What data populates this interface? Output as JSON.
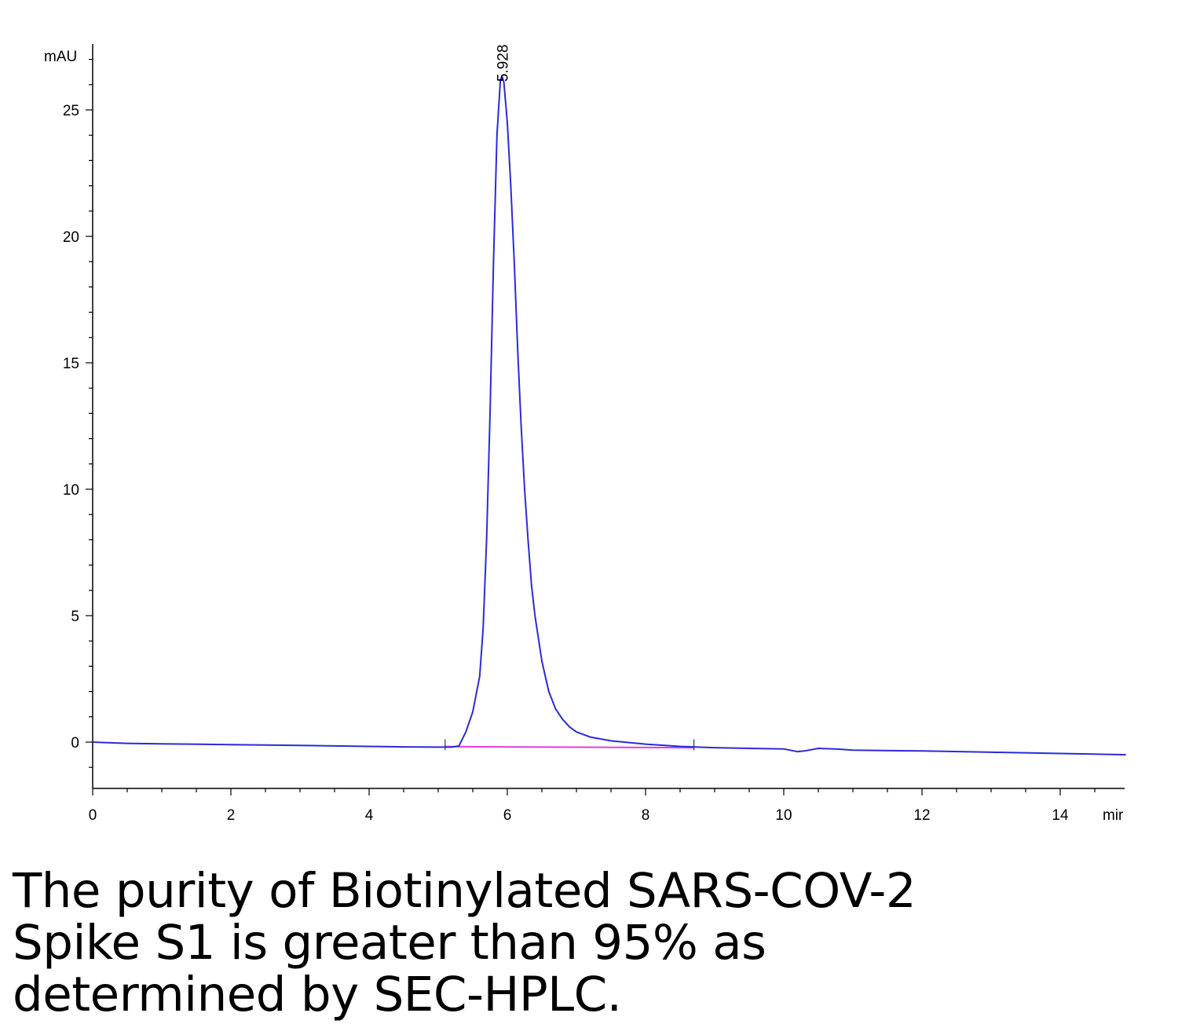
{
  "chart_data": {
    "type": "line",
    "title": "",
    "ylabel": "mAU",
    "xlabel": "mir",
    "xlim": [
      0,
      14.95
    ],
    "ylim": [
      -1.8,
      27.5
    ],
    "x_ticks": [
      0,
      2,
      4,
      6,
      8,
      10,
      12,
      14
    ],
    "y_ticks": [
      0,
      5,
      10,
      15,
      20,
      25
    ],
    "grid": false,
    "colors": {
      "signal": "#2b2bd8",
      "baseline": "#e23ce0",
      "axis": "#000000"
    },
    "peak_annotation": {
      "label": "5.928",
      "x": 5.928,
      "y": 26.3
    },
    "series": [
      {
        "x": [
          0,
          0.5,
          1,
          2,
          3,
          4,
          4.5,
          5.0,
          5.1,
          5.2,
          5.3,
          5.4,
          5.5,
          5.6,
          5.65,
          5.7,
          5.75,
          5.8,
          5.85,
          5.9,
          5.928,
          5.95,
          6.0,
          6.05,
          6.1,
          6.15,
          6.2,
          6.25,
          6.3,
          6.35,
          6.4,
          6.5,
          6.6,
          6.7,
          6.8,
          6.9,
          7.0,
          7.2,
          7.5,
          8,
          8.5,
          9,
          9.5,
          10,
          10.2,
          10.3,
          10.5,
          10.8,
          11,
          12,
          13,
          14,
          14.95
        ],
        "y": [
          0.0,
          -0.05,
          -0.07,
          -0.1,
          -0.13,
          -0.17,
          -0.19,
          -0.2,
          -0.2,
          -0.2,
          -0.15,
          0.4,
          1.2,
          2.6,
          4.5,
          8,
          13,
          19,
          24,
          26.2,
          26.3,
          26.1,
          24.5,
          22,
          19,
          15.5,
          12.5,
          10,
          8,
          6.2,
          5,
          3.2,
          2.0,
          1.3,
          0.9,
          0.6,
          0.4,
          0.2,
          0.05,
          -0.08,
          -0.17,
          -0.22,
          -0.25,
          -0.27,
          -0.38,
          -0.35,
          -0.25,
          -0.28,
          -0.32,
          -0.35,
          -0.4,
          -0.45,
          -0.5
        ]
      }
    ],
    "baseline_segment": {
      "x": [
        5.1,
        8.7
      ],
      "y": [
        -0.18,
        -0.22
      ]
    },
    "event_marks": [
      5.1,
      8.7
    ]
  },
  "caption": "The purity of Biotinylated SARS-COV-2 Spike S1 is greater than 95% as determined by SEC-HPLC."
}
